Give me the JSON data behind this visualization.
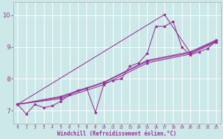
{
  "background_color": "#cce8e8",
  "plot_bg": "#cce8e8",
  "grid_color": "#ffffff",
  "line_color": "#993399",
  "xlabel": "Windchill (Refroidissement éolien,°C)",
  "xlim": [
    -0.5,
    23.5
  ],
  "ylim": [
    6.6,
    10.4
  ],
  "yticks": [
    7,
    8,
    9,
    10
  ],
  "xticks": [
    0,
    1,
    2,
    3,
    4,
    5,
    6,
    7,
    8,
    9,
    10,
    11,
    12,
    13,
    14,
    15,
    16,
    17,
    18,
    19,
    20,
    21,
    22,
    23
  ],
  "series1": [
    [
      0,
      7.2
    ],
    [
      1,
      6.9
    ],
    [
      2,
      7.2
    ],
    [
      3,
      7.1
    ],
    [
      4,
      7.15
    ],
    [
      5,
      7.3
    ],
    [
      6,
      7.5
    ],
    [
      7,
      7.65
    ],
    [
      8,
      7.7
    ],
    [
      9,
      6.95
    ],
    [
      10,
      7.85
    ],
    [
      11,
      7.95
    ],
    [
      12,
      8.0
    ],
    [
      13,
      8.4
    ],
    [
      14,
      8.5
    ],
    [
      15,
      8.8
    ],
    [
      16,
      9.65
    ],
    [
      17,
      9.65
    ],
    [
      18,
      9.8
    ],
    [
      19,
      9.0
    ],
    [
      20,
      8.75
    ],
    [
      21,
      8.85
    ],
    [
      22,
      8.95
    ],
    [
      23,
      9.2
    ]
  ],
  "series2": [
    [
      0,
      7.2
    ],
    [
      5,
      7.38
    ],
    [
      10,
      7.82
    ],
    [
      15,
      8.5
    ],
    [
      20,
      8.78
    ],
    [
      23,
      9.15
    ]
  ],
  "series3": [
    [
      0,
      7.2
    ],
    [
      5,
      7.42
    ],
    [
      10,
      7.88
    ],
    [
      15,
      8.55
    ],
    [
      20,
      8.82
    ],
    [
      23,
      9.18
    ]
  ],
  "series4": [
    [
      0,
      7.2
    ],
    [
      5,
      7.45
    ],
    [
      10,
      7.9
    ],
    [
      15,
      8.58
    ],
    [
      20,
      8.85
    ],
    [
      23,
      9.22
    ]
  ],
  "series5": [
    [
      0,
      7.2
    ],
    [
      17,
      10.02
    ],
    [
      20,
      8.82
    ],
    [
      23,
      9.2
    ]
  ]
}
